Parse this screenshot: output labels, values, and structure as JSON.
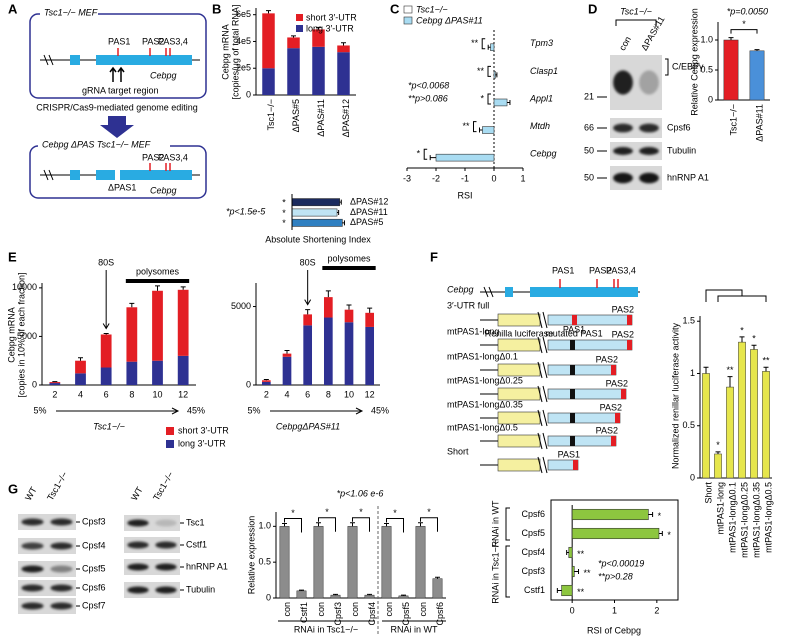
{
  "panel_labels": [
    "A",
    "B",
    "C",
    "D",
    "E",
    "F",
    "G"
  ],
  "panel_a": {
    "top_title": "Tsc1−/− MEF",
    "pas1": "PAS1",
    "pas2": "PAS2",
    "pas34": "PAS3,4",
    "grna": "gRNA target region",
    "gene": "Cebpg",
    "method": "CRISPR/Cas9-mediated genome editing",
    "bottom_title": "Cebpg ΔPAS Tsc1−/− MEF",
    "dpas1": "ΔPAS1",
    "pas2_b": "PAS2",
    "pas34_b": "PAS3,4",
    "gene_b": "Cebpg"
  },
  "panel_d_blot": {
    "header": "Tsc1−/−",
    "lanes": [
      "con",
      "ΔPAS#11"
    ],
    "markers": [
      21,
      66,
      50,
      50
    ],
    "bands": [
      "C/EBPγ",
      "Cpsf6",
      "Tubulin",
      "hnRNP A1"
    ]
  },
  "panel_f_diagram": {
    "gene": "Cebpg",
    "pas1": "PAS1",
    "pas2": "PAS2",
    "pas34": "PAS3,4",
    "renilla": "Renilla luciferase",
    "mutated": "mutated PAS1",
    "constructs": [
      {
        "name": "3′-UTR full",
        "sites": [
          "PAS1",
          "PAS2"
        ]
      },
      {
        "name": "mtPAS1-long",
        "sites": [
          "PAS2"
        ]
      },
      {
        "name": "mtPAS1-longΔ0.1",
        "sites": [
          "PAS2"
        ]
      },
      {
        "name": "mtPAS1-longΔ0.25",
        "sites": [
          "PAS2"
        ]
      },
      {
        "name": "mtPAS1-longΔ0.35",
        "sites": [
          "PAS2"
        ]
      },
      {
        "name": "mtPAS1-longΔ0.5",
        "sites": [
          "PAS2"
        ]
      },
      {
        "name": "Short",
        "sites": [
          "PAS1"
        ]
      }
    ]
  },
  "panel_g_blots": {
    "left": {
      "lanes": [
        "WT",
        "Tsc1−/−"
      ],
      "bands": [
        "Cpsf3",
        "Cpsf4",
        "Cpsf5",
        "Cpsf6",
        "Cpsf7"
      ]
    },
    "right": {
      "lanes": [
        "WT",
        "Tsc1−/−"
      ],
      "bands": [
        "Tsc1",
        "Cstf1",
        "hnRNP A1",
        "Tubulin"
      ]
    }
  },
  "chart_data": [
    {
      "type": "bar",
      "stacked": true,
      "ylabel": [
        "Cebpg mRNA",
        "[copies/μg of total RNA]"
      ],
      "categories": [
        "Tsc1−/−",
        "ΔPAS#5",
        "ΔPAS#11",
        "ΔPAS#12"
      ],
      "series": [
        {
          "name": "long 3′-UTR",
          "color": "#2e3192",
          "values": [
            200000,
            350000,
            360000,
            320000
          ]
        },
        {
          "name": "short 3′-UTR",
          "color": "#e31e24",
          "values": [
            410000,
            80000,
            130000,
            50000
          ]
        }
      ],
      "errors": [
        20000,
        12000,
        15000,
        20000
      ],
      "ylim": [
        0,
        650000
      ],
      "yticks": [
        0,
        {
          "value": 200000,
          "label": "2e5"
        },
        {
          "value": 400000,
          "label": "4e5"
        },
        {
          "value": 600000,
          "label": "6e5"
        }
      ]
    },
    {
      "type": "hbar",
      "xlabel": "Absolute Shortening Index",
      "annotation": "*p<1.5e-5",
      "categories": [
        "ΔPAS#12",
        "ΔPAS#11",
        "ΔPAS#5"
      ],
      "values": [
        0.9,
        0.85,
        0.95
      ],
      "errors": [
        0.03,
        0.03,
        0.04
      ],
      "colors": [
        "#1b2a5e",
        "#bfe4f4",
        "#2f7fc1"
      ],
      "significance": [
        "*",
        "*",
        "*"
      ],
      "xlim": [
        0,
        1
      ]
    },
    {
      "type": "hbar",
      "xlabel": "RSI",
      "annotations": [
        "*p<0.0068",
        "**p>0.086"
      ],
      "categories": [
        "Tpm3",
        "Clasp1",
        "Appl1",
        "Mtdh",
        "Cebpg"
      ],
      "series": [
        {
          "name": "Tsc1−/−",
          "color": "#ffffff",
          "values": [
            0,
            0,
            0,
            0,
            0
          ]
        },
        {
          "name": "Cebpg ΔPAS#11",
          "color": "#a9dcf2",
          "values": [
            -0.12,
            0.05,
            0.45,
            -0.4,
            -2.0
          ],
          "errors": [
            0.08,
            0.05,
            0.1,
            0.1,
            0.2
          ]
        }
      ],
      "significance": [
        "**",
        "**",
        "*",
        "**",
        "*"
      ],
      "xlim": [
        -3,
        1
      ],
      "xticks": [
        -3,
        -2,
        -1,
        0,
        1
      ]
    },
    {
      "type": "bar",
      "ylabel": "Relative Cebpg expression",
      "annotation": "*p=0.0050",
      "categories": [
        "Tsc1−/−",
        "ΔPAS#11"
      ],
      "values": [
        1.0,
        0.82
      ],
      "errors": [
        0.04,
        0.02
      ],
      "colors": [
        "#e31e24",
        "#4a90d9"
      ],
      "significance": "*",
      "ylim": [
        0,
        1.3
      ],
      "yticks": [
        0,
        0.5,
        {
          "value": 1,
          "label": "1.0"
        }
      ]
    },
    {
      "type": "bar",
      "stacked": true,
      "ylabel": [
        "Cebpg mRNA",
        "[copies in 10% of each fraction]"
      ],
      "xlabel": "Tsc1−/−",
      "marker": "80S",
      "polysome_label": "polysomes",
      "gradient_start": "5%",
      "gradient_end": "45%",
      "categories": [
        "2",
        "4",
        "6",
        "8",
        "10",
        "12"
      ],
      "series": [
        {
          "name": "long 3′-UTR",
          "color": "#2e3192",
          "values": [
            200,
            1200,
            1800,
            2400,
            2500,
            3000
          ]
        },
        {
          "name": "short 3′-UTR",
          "color": "#e31e24",
          "values": [
            100,
            1300,
            3400,
            5600,
            7200,
            6800
          ]
        }
      ],
      "errors": [
        50,
        300,
        100,
        400,
        500,
        300
      ],
      "ylim": [
        0,
        10500
      ],
      "yticks": [
        0,
        5000,
        10000
      ]
    },
    {
      "type": "bar",
      "stacked": true,
      "xlabel": "CebpgΔPAS#11",
      "marker": "80S",
      "polysome_label": "polysomes",
      "gradient_start": "5%",
      "gradient_end": "45%",
      "categories": [
        "2",
        "4",
        "6",
        "8",
        "10",
        "12"
      ],
      "series": [
        {
          "color": "#2e3192",
          "values": [
            200,
            1800,
            3800,
            4300,
            4000,
            3700
          ]
        },
        {
          "color": "#e31e24",
          "values": [
            100,
            200,
            700,
            1300,
            800,
            900
          ]
        }
      ],
      "errors": [
        50,
        200,
        300,
        400,
        300,
        300
      ],
      "ylim": [
        0,
        6500
      ],
      "yticks": [
        0,
        5000
      ]
    },
    {
      "type": "bar",
      "ylabel": "Normalized renillar luciferase activity",
      "categories": [
        "Short",
        "mtPAS1-long",
        "mtPAS1-longΔ0.1",
        "mtPAS1-longΔ0.25",
        "mtPAS1-longΔ0.35",
        "mtPAS1-longΔ0.5"
      ],
      "values": [
        1.0,
        0.23,
        0.87,
        1.3,
        1.23,
        1.02
      ],
      "errors": [
        0.06,
        0.02,
        0.1,
        0.05,
        0.04,
        0.04
      ],
      "color": "#e6e64c",
      "significance": [
        null,
        "*",
        "**",
        "*",
        "*",
        "**"
      ],
      "ylim": [
        0,
        1.55
      ],
      "yticks": [
        0,
        0.5,
        1,
        1.5
      ]
    },
    {
      "type": "bar",
      "ylabel": "Relative expression",
      "annotation": "*p<1.06 e-6",
      "categories": [
        "con",
        "Cstf1",
        "con",
        "Cpsf3",
        "con",
        "Cpsf4",
        "con",
        "Cpsf5",
        "con",
        "Cpsf6"
      ],
      "values": [
        1,
        0.1,
        1,
        0.04,
        1,
        0.04,
        1,
        0.03,
        1,
        0.27
      ],
      "errors": [
        0.04,
        0.01,
        0.05,
        0.01,
        0.05,
        0.01,
        0.04,
        0.01,
        0.05,
        0.02
      ],
      "color": "#8c8c8c",
      "significance": [
        "*",
        "*",
        "*",
        "*",
        "*"
      ],
      "groups": [
        "RNAi in Tsc1−/−",
        "RNAi in WT"
      ],
      "ylim": [
        0,
        1.2
      ],
      "yticks": [
        0,
        0.5,
        {
          "value": 1,
          "label": "1.0"
        }
      ]
    },
    {
      "type": "hbar",
      "xlabel": "RSI of Cebpg",
      "annotations": [
        "*p<0.00019",
        "**p>0.28"
      ],
      "groups": [
        "RNAi in WT",
        "RNAi in Tsc1−/−"
      ],
      "categories": [
        "Cpsf6",
        "Cpsf5",
        "Cpsf4",
        "Cpsf3",
        "Cstf1"
      ],
      "values": [
        1.8,
        2.05,
        -0.08,
        0.05,
        -0.25
      ],
      "errors": [
        0.1,
        0.08,
        0.05,
        0.1,
        0.1
      ],
      "color": "#8dc63f",
      "significance": [
        "*",
        "*",
        "**",
        "**",
        "**"
      ],
      "xlim": [
        -0.5,
        2.5
      ],
      "xticks": [
        0,
        1,
        2
      ]
    }
  ]
}
